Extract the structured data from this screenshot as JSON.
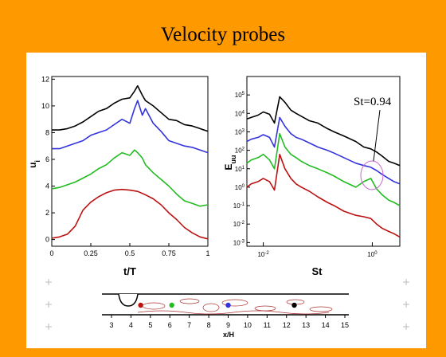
{
  "slide": {
    "title": "Velocity probes",
    "colors": {
      "background": "#FF9900",
      "panel": "#FFFFFF"
    }
  },
  "chart_data": [
    {
      "type": "line",
      "xlabel": "t/T",
      "ylabel": "u_i",
      "xlim": [
        0,
        1
      ],
      "ylim": [
        -0.5,
        12.2
      ],
      "x_ticks": [
        "0",
        "0.25",
        "0.5",
        "0.75",
        "1"
      ],
      "y_ticks": [
        "0",
        "2",
        "4",
        "6",
        "8",
        "10",
        "12"
      ],
      "grid": false,
      "series": [
        {
          "color": "#000000",
          "x": [
            0,
            0.05,
            0.1,
            0.15,
            0.2,
            0.25,
            0.3,
            0.35,
            0.4,
            0.45,
            0.5,
            0.53,
            0.55,
            0.58,
            0.6,
            0.65,
            0.7,
            0.75,
            0.8,
            0.85,
            0.9,
            0.95,
            1.0
          ],
          "y": [
            8.2,
            8.2,
            8.3,
            8.5,
            8.8,
            9.2,
            9.6,
            9.8,
            10.2,
            10.5,
            10.6,
            11.1,
            11.5,
            10.8,
            10.4,
            10.0,
            9.5,
            9.0,
            8.9,
            8.6,
            8.5,
            8.3,
            8.1
          ]
        },
        {
          "color": "#3333DD",
          "x": [
            0,
            0.05,
            0.1,
            0.15,
            0.2,
            0.25,
            0.3,
            0.35,
            0.4,
            0.45,
            0.5,
            0.53,
            0.55,
            0.58,
            0.6,
            0.65,
            0.7,
            0.75,
            0.8,
            0.85,
            0.9,
            0.95,
            1.0
          ],
          "y": [
            6.8,
            6.8,
            7.0,
            7.2,
            7.4,
            7.8,
            8.0,
            8.2,
            8.6,
            9.0,
            8.7,
            9.8,
            10.4,
            9.3,
            9.8,
            8.7,
            8.1,
            7.4,
            7.2,
            7.0,
            6.9,
            6.7,
            6.5
          ]
        },
        {
          "color": "#22BB22",
          "x": [
            0,
            0.05,
            0.1,
            0.15,
            0.2,
            0.25,
            0.3,
            0.35,
            0.4,
            0.45,
            0.5,
            0.53,
            0.55,
            0.58,
            0.6,
            0.65,
            0.7,
            0.75,
            0.8,
            0.85,
            0.9,
            0.95,
            1.0
          ],
          "y": [
            3.8,
            3.9,
            4.1,
            4.3,
            4.6,
            4.9,
            5.3,
            5.6,
            6.1,
            6.5,
            6.3,
            6.7,
            6.5,
            6.1,
            5.6,
            5.0,
            4.5,
            4.0,
            3.4,
            2.9,
            2.7,
            2.5,
            2.6
          ]
        },
        {
          "color": "#BB1111",
          "x": [
            0,
            0.05,
            0.1,
            0.15,
            0.2,
            0.25,
            0.3,
            0.35,
            0.4,
            0.45,
            0.5,
            0.55,
            0.6,
            0.65,
            0.7,
            0.75,
            0.8,
            0.85,
            0.9,
            0.95,
            1.0
          ],
          "y": [
            0.1,
            0.2,
            0.4,
            1.0,
            2.2,
            2.8,
            3.2,
            3.5,
            3.7,
            3.75,
            3.7,
            3.6,
            3.35,
            3.05,
            2.6,
            2.0,
            1.5,
            0.9,
            0.5,
            0.2,
            0.05
          ]
        }
      ]
    },
    {
      "type": "line",
      "xlabel": "St",
      "ylabel": "E_uu",
      "x_scale": "log",
      "y_scale": "log",
      "xlim": [
        0.005,
        3.2
      ],
      "ylim": [
        0.00063,
        1000000
      ],
      "x_ticks": [
        {
          "value": 0.01,
          "base": "10",
          "exp": "-2"
        },
        {
          "value": 1,
          "base": "10",
          "exp": "0"
        }
      ],
      "y_ticks": [
        {
          "value": 100000,
          "base": "10",
          "exp": "5"
        },
        {
          "value": 10000,
          "base": "10",
          "exp": "4"
        },
        {
          "value": 1000,
          "base": "10",
          "exp": "3"
        },
        {
          "value": 100,
          "base": "10",
          "exp": "2"
        },
        {
          "value": 10,
          "base": "10",
          "exp": "1"
        },
        {
          "value": 1,
          "base": "10",
          "exp": "0"
        },
        {
          "value": 0.1,
          "base": "10",
          "exp": "-1"
        },
        {
          "value": 0.01,
          "base": "10",
          "exp": "-2"
        },
        {
          "value": 0.001,
          "base": "10",
          "exp": "-3"
        }
      ],
      "annotation": {
        "text": "St=0.94",
        "x": 0.94
      },
      "grid": false,
      "series": [
        {
          "color": "#000000",
          "x": [
            0.005,
            0.006,
            0.008,
            0.01,
            0.013,
            0.016,
            0.02,
            0.025,
            0.032,
            0.04,
            0.05,
            0.07,
            0.1,
            0.15,
            0.2,
            0.3,
            0.5,
            0.7,
            0.94,
            1.2,
            1.5,
            2.0,
            2.5,
            3.2
          ],
          "y": [
            5000,
            6000,
            8000,
            12000,
            9000,
            3000,
            80000,
            40000,
            15000,
            10000,
            7000,
            4000,
            3000,
            1500,
            1000,
            600,
            300,
            150,
            120,
            80,
            50,
            25,
            20,
            15
          ]
        },
        {
          "color": "#3333DD",
          "x": [
            0.005,
            0.006,
            0.008,
            0.01,
            0.013,
            0.016,
            0.02,
            0.025,
            0.032,
            0.04,
            0.05,
            0.07,
            0.1,
            0.15,
            0.2,
            0.3,
            0.5,
            0.7,
            0.94,
            1.2,
            1.5,
            2.0,
            2.5,
            3.2
          ],
          "y": [
            300,
            400,
            500,
            700,
            500,
            150,
            6000,
            2000,
            800,
            500,
            400,
            250,
            150,
            100,
            70,
            40,
            20,
            15,
            12,
            8,
            5,
            3,
            2,
            1.5
          ]
        },
        {
          "color": "#22BB22",
          "x": [
            0.005,
            0.006,
            0.008,
            0.01,
            0.013,
            0.016,
            0.02,
            0.025,
            0.032,
            0.04,
            0.05,
            0.07,
            0.1,
            0.15,
            0.2,
            0.3,
            0.5,
            0.7,
            0.94,
            1.2,
            1.5,
            2.0,
            2.5,
            3.2
          ],
          "y": [
            20,
            30,
            40,
            60,
            30,
            10,
            800,
            150,
            60,
            40,
            25,
            15,
            10,
            6,
            4,
            2,
            1,
            2,
            3,
            0.8,
            0.4,
            0.2,
            0.15,
            0.1
          ]
        },
        {
          "color": "#BB1111",
          "x": [
            0.005,
            0.006,
            0.008,
            0.01,
            0.013,
            0.016,
            0.02,
            0.025,
            0.032,
            0.04,
            0.05,
            0.07,
            0.1,
            0.15,
            0.2,
            0.3,
            0.5,
            0.7,
            0.94,
            1.2,
            1.5,
            2.0,
            2.5,
            3.2
          ],
          "y": [
            1,
            1.5,
            2,
            3,
            2,
            0.7,
            60,
            10,
            3,
            1.5,
            1,
            0.6,
            0.3,
            0.15,
            0.1,
            0.05,
            0.03,
            0.025,
            0.02,
            0.01,
            0.006,
            0.004,
            0.003,
            0.002
          ]
        }
      ]
    },
    {
      "type": "scatter",
      "xlabel": "x/H",
      "x_ticks": [
        "3",
        "4",
        "5",
        "6",
        "7",
        "8",
        "9",
        "10",
        "11",
        "12",
        "13",
        "14",
        "15"
      ],
      "xlim": [
        3,
        15
      ],
      "probes": [
        {
          "x": 4.5,
          "color": "#BB1111"
        },
        {
          "x": 6.1,
          "color": "#22BB22"
        },
        {
          "x": 9.0,
          "color": "#3333DD"
        },
        {
          "x": 12.4,
          "color": "#000000"
        }
      ]
    }
  ]
}
